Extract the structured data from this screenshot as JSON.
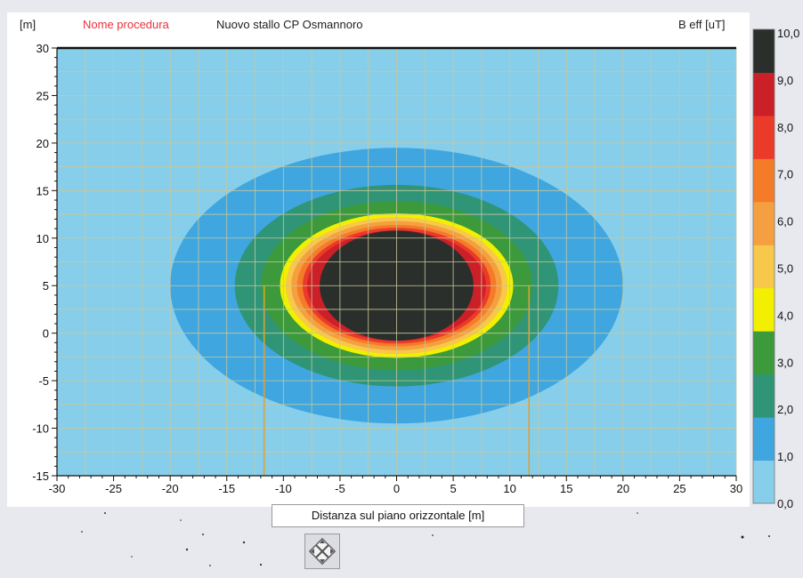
{
  "header": {
    "y_unit": "[m]",
    "procedure_label": "Nome procedura",
    "procedure_name": "Nuovo stallo CP Osmannoro",
    "colorbar_title": "B eff [uT]"
  },
  "xlabel_box": {
    "text": "Distanza sul piano orizzontale [m]"
  },
  "nav_button": {
    "icon": "move-arrows-icon"
  },
  "colors": {
    "label_accent": "#e8303a",
    "grid": "#c8c89a",
    "lines": "#d9a23a"
  },
  "chart_data": {
    "type": "heatmap",
    "title": "",
    "xlabel": "Distanza sul piano orizzontale [m]",
    "ylabel": "[m]",
    "xlim": [
      -30,
      30
    ],
    "ylim": [
      -15,
      30
    ],
    "x_ticks": [
      -30,
      -25,
      -20,
      -15,
      -10,
      -5,
      0,
      5,
      10,
      15,
      20,
      25,
      30
    ],
    "y_ticks": [
      -15,
      -10,
      -5,
      0,
      5,
      10,
      15,
      20,
      25,
      30
    ],
    "grid": true,
    "colorbar": {
      "label": "B eff [uT]",
      "ticks": [
        "10,0",
        "9,0",
        "8,0",
        "7,0",
        "6,0",
        "5,0",
        "4,0",
        "3,0",
        "2,0",
        "1,0",
        "0,0"
      ],
      "levels": [
        {
          "from": 0,
          "to": 1,
          "color": "#87ceeb"
        },
        {
          "from": 1,
          "to": 2,
          "color": "#3fa6df"
        },
        {
          "from": 2,
          "to": 3,
          "color": "#2f9576"
        },
        {
          "from": 3,
          "to": 4,
          "color": "#3c9a3c"
        },
        {
          "from": 4,
          "to": 5,
          "color": "#f2f000"
        },
        {
          "from": 5,
          "to": 6,
          "color": "#f7c84a"
        },
        {
          "from": 6,
          "to": 7,
          "color": "#f5a040"
        },
        {
          "from": 7,
          "to": 8,
          "color": "#f47c28"
        },
        {
          "from": 8,
          "to": 9,
          "color": "#ec3a2a"
        },
        {
          "from": 9,
          "to": 10,
          "color": "#cc2028"
        },
        {
          "from": 10,
          "to": 11,
          "color": "#2b2f2b"
        }
      ]
    },
    "center": [
      0,
      5
    ],
    "contours": [
      {
        "level": 1,
        "rx": 20.0,
        "ry": 14.5,
        "color": "#3fa6df"
      },
      {
        "level": 2,
        "rx": 14.3,
        "ry": 10.6,
        "color": "#2f9576"
      },
      {
        "level": 3,
        "rx": 12.0,
        "ry": 8.9,
        "color": "#3c9a3c"
      },
      {
        "level": 4,
        "rx": 10.3,
        "ry": 7.6,
        "color": "#f2f000"
      },
      {
        "level": 5,
        "rx": 9.8,
        "ry": 7.2,
        "color": "#f7c84a"
      },
      {
        "level": 6,
        "rx": 9.3,
        "ry": 6.8,
        "color": "#f5a040"
      },
      {
        "level": 7,
        "rx": 8.8,
        "ry": 6.4,
        "color": "#f47c28"
      },
      {
        "level": 8,
        "rx": 8.3,
        "ry": 6.1,
        "color": "#ec3a2a"
      },
      {
        "level": 9,
        "rx": 7.9,
        "ry": 5.8,
        "color": "#cc2028"
      },
      {
        "level": 10,
        "rx": 6.8,
        "ry": 5.8,
        "color": "#2b2f2b"
      }
    ],
    "vertical_lines": [
      {
        "x": -11.7,
        "y_from": -15,
        "y_to": 5
      },
      {
        "x": 11.7,
        "y_from": -15,
        "y_to": 5
      }
    ]
  }
}
